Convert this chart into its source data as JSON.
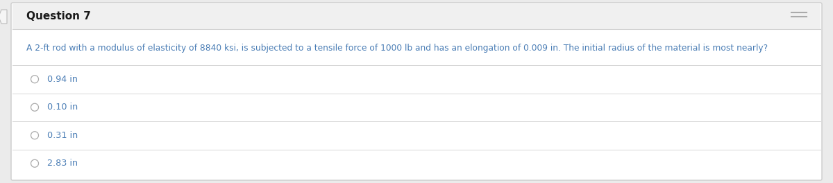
{
  "title": "Question 7",
  "question": "A 2-ft rod with a modulus of elasticity of 8840 ksi, is subjected to a tensile force of 1000 lb and has an elongation of 0.009 in. The initial radius of the material is most nearly?",
  "options": [
    "0.94 in",
    "0.10 in",
    "0.31 in",
    "2.83 in"
  ],
  "bg_color": "#ebebeb",
  "card_color": "#ffffff",
  "title_color": "#1a1a1a",
  "question_color": "#4a7db5",
  "option_color": "#4a7db5",
  "line_color": "#d0d0d0",
  "title_fontsize": 11,
  "question_fontsize": 8.8,
  "option_fontsize": 9.2,
  "header_bg": "#f0f0f0",
  "border_color": "#cccccc",
  "radio_color": "#aaaaaa",
  "minimize_color": "#aaaaaa"
}
